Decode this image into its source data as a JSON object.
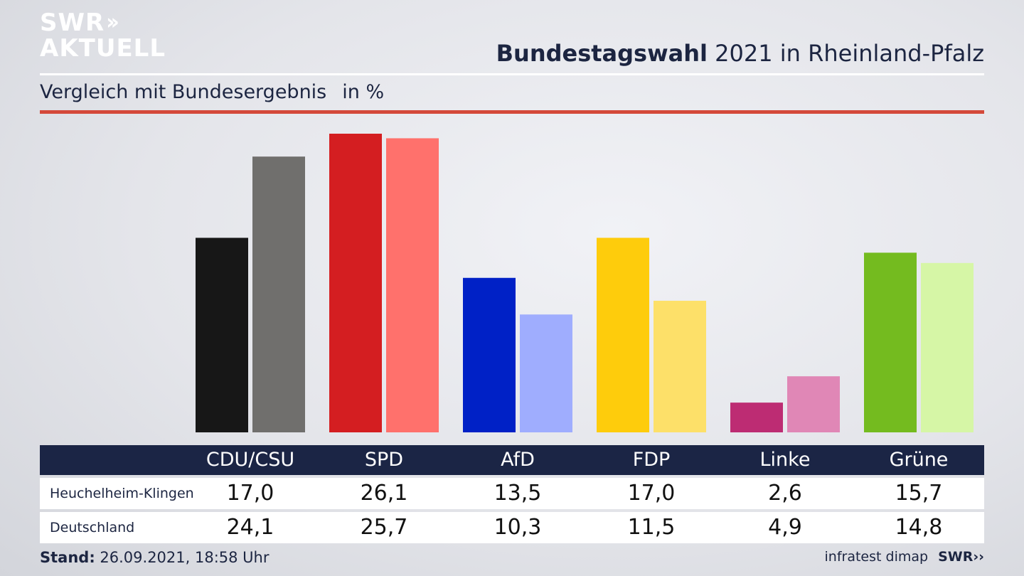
{
  "brand": {
    "line1": "SWR",
    "arrows": "››",
    "line2": "AKTUELL",
    "small": "SWR››"
  },
  "header": {
    "title_strong": "Bundestagswahl",
    "title_rest": " 2021 in Rheinland-Pfalz",
    "subtitle": "Vergleich mit Bundesergebnis",
    "unit": "in %"
  },
  "footer": {
    "stand_label": "Stand:",
    "stand_value": " 26.09.2021, 18:58 Uhr",
    "source": "infratest dimap"
  },
  "rows": {
    "local": "Heuchelheim-Klingen",
    "national": "Deutschland"
  },
  "colors": {
    "local": [
      "#171717",
      "#d41e21",
      "#0021c6",
      "#fecc0c",
      "#bd2c73",
      "#74bb1f"
    ],
    "national": [
      "#706f6d",
      "#ff716c",
      "#9fadfe",
      "#fde069",
      "#e087b6",
      "#d6f6a6"
    ]
  },
  "chart_data": {
    "type": "bar",
    "categories": [
      "CDU/CSU",
      "SPD",
      "AfD",
      "FDP",
      "Linke",
      "Grüne"
    ],
    "series": [
      {
        "name": "Heuchelheim-Klingen",
        "values": [
          17.0,
          26.1,
          13.5,
          17.0,
          2.6,
          15.7
        ],
        "labels": [
          "17,0",
          "26,1",
          "13,5",
          "17,0",
          "2,6",
          "15,7"
        ]
      },
      {
        "name": "Deutschland",
        "values": [
          24.1,
          25.7,
          10.3,
          11.5,
          4.9,
          14.8
        ],
        "labels": [
          "24,1",
          "25,7",
          "10,3",
          "11,5",
          "4,9",
          "14,8"
        ]
      }
    ],
    "title": "Bundestagswahl 2021 in Rheinland-Pfalz",
    "subtitle": "Vergleich mit Bundesergebnis",
    "ylabel": "in %",
    "grid": false
  }
}
